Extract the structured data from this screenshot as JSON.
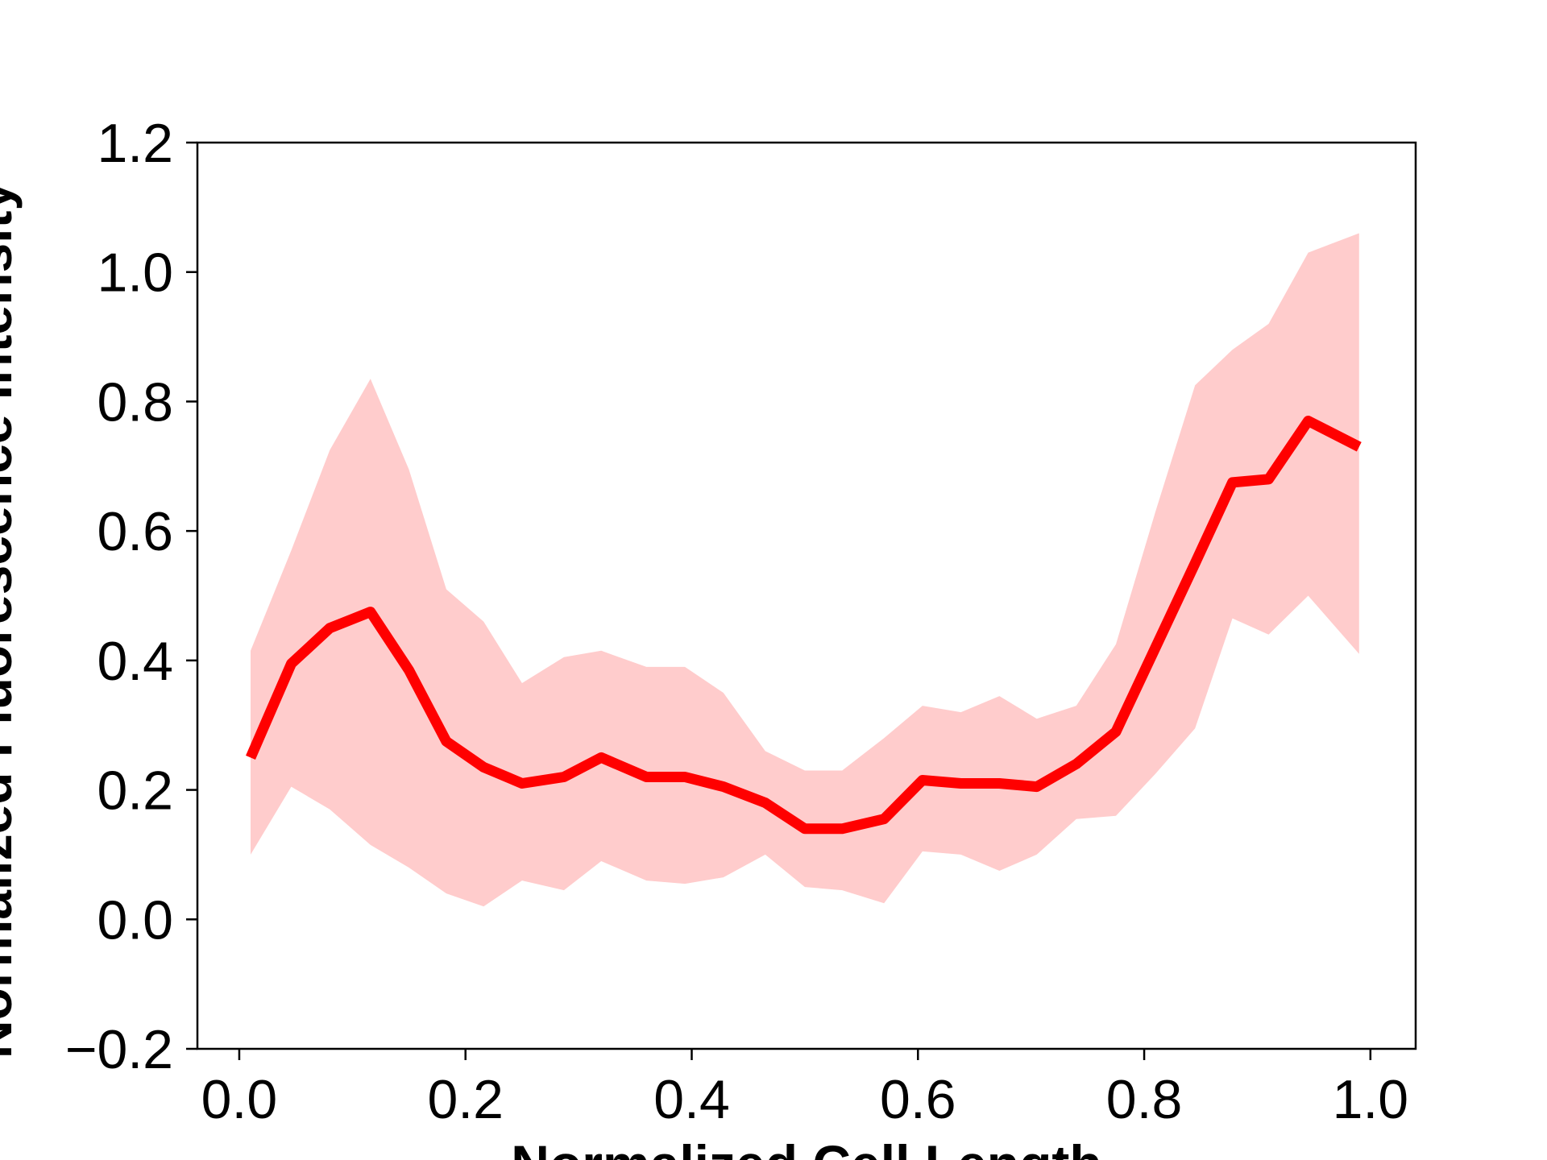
{
  "chart_data": {
    "type": "line",
    "xlabel": "Normalized Cell Length",
    "ylabel": "Normalized Fluorescence Intensity",
    "xlim": [
      -0.037,
      1.04
    ],
    "ylim": [
      -0.2,
      1.2
    ],
    "xticks": [
      0.0,
      0.2,
      0.4,
      0.6,
      0.8,
      1.0
    ],
    "xtick_labels": [
      "0.0",
      "0.2",
      "0.4",
      "0.6",
      "0.8",
      "1.0"
    ],
    "yticks": [
      -0.2,
      0.0,
      0.2,
      0.4,
      0.6,
      0.8,
      1.0,
      1.2
    ],
    "ytick_labels": [
      "−0.2",
      "0.0",
      "0.2",
      "0.4",
      "0.6",
      "0.8",
      "1.0",
      "1.2"
    ],
    "grid": false,
    "legend": "none",
    "colors": {
      "line": "#ff0000",
      "band": "#ffcccc"
    },
    "x": [
      0.01,
      0.046,
      0.08,
      0.116,
      0.15,
      0.183,
      0.216,
      0.25,
      0.287,
      0.32,
      0.36,
      0.394,
      0.428,
      0.465,
      0.5,
      0.533,
      0.57,
      0.604,
      0.638,
      0.672,
      0.705,
      0.74,
      0.775,
      0.81,
      0.845,
      0.878,
      0.91,
      0.945,
      0.99
    ],
    "series": [
      {
        "values": [
          0.25,
          0.395,
          0.45,
          0.475,
          0.385,
          0.275,
          0.235,
          0.21,
          0.22,
          0.25,
          0.22,
          0.22,
          0.205,
          0.18,
          0.14,
          0.14,
          0.155,
          0.215,
          0.21,
          0.21,
          0.205,
          0.24,
          0.29,
          0.42,
          0.55,
          0.675,
          0.68,
          0.77,
          0.73
        ],
        "lower": [
          0.1,
          0.205,
          0.17,
          0.115,
          0.08,
          0.04,
          0.02,
          0.06,
          0.045,
          0.09,
          0.06,
          0.055,
          0.065,
          0.1,
          0.05,
          0.045,
          0.025,
          0.105,
          0.1,
          0.075,
          0.1,
          0.155,
          0.16,
          0.225,
          0.295,
          0.465,
          0.44,
          0.5,
          0.41
        ],
        "upper": [
          0.415,
          0.57,
          0.725,
          0.835,
          0.695,
          0.51,
          0.46,
          0.365,
          0.405,
          0.415,
          0.39,
          0.39,
          0.35,
          0.26,
          0.23,
          0.23,
          0.28,
          0.33,
          0.32,
          0.345,
          0.31,
          0.33,
          0.425,
          0.63,
          0.825,
          0.88,
          0.92,
          1.03,
          1.06
        ]
      }
    ]
  }
}
